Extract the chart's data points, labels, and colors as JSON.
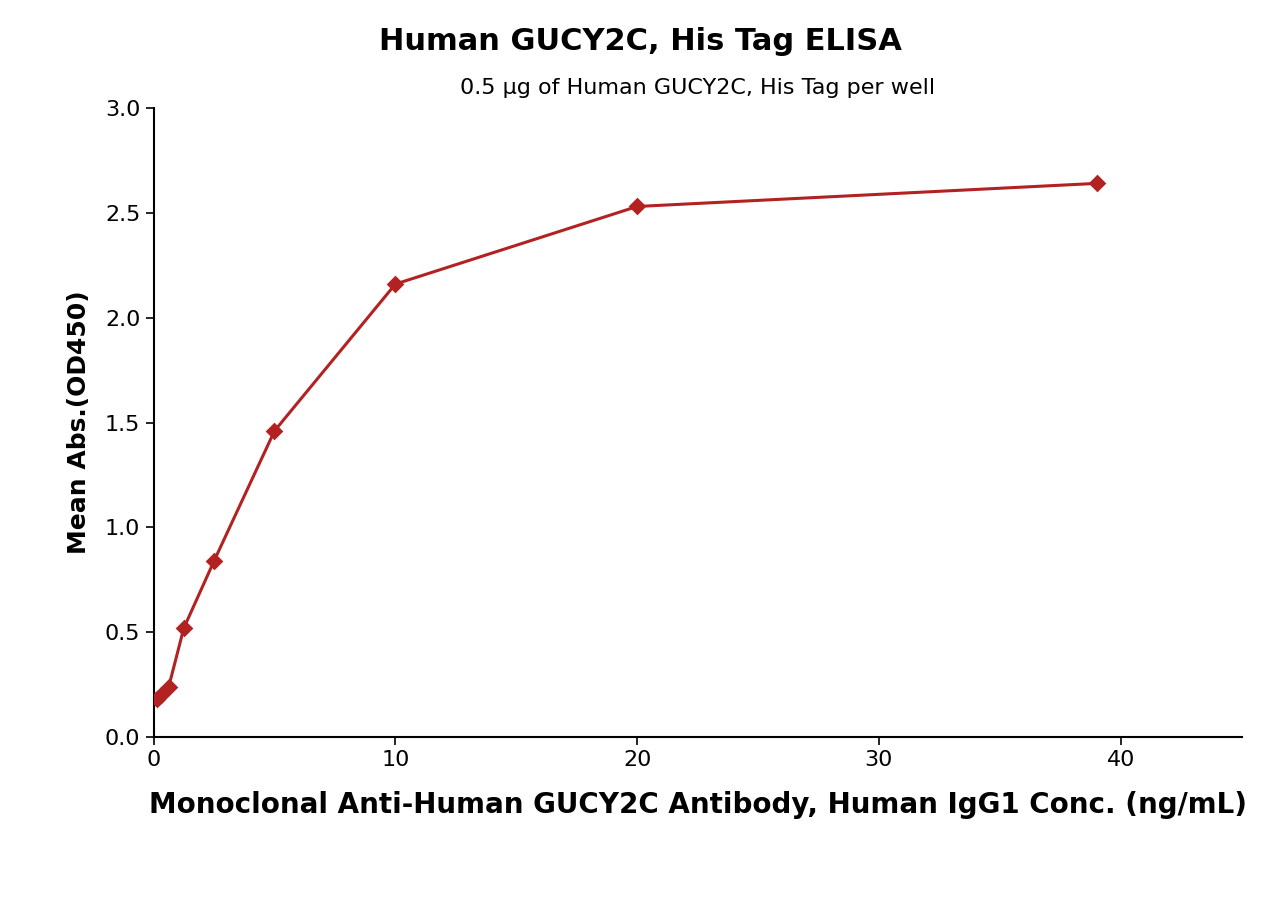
{
  "title": "Human GUCY2C, His Tag ELISA",
  "subtitle": "0.5 μg of Human GUCY2C, His Tag per well",
  "xlabel": "Monoclonal Anti-Human GUCY2C Antibody, Human IgG1 Conc. (ng/mL)",
  "ylabel": "Mean Abs.(OD450)",
  "x_data": [
    0.156,
    0.312,
    0.625,
    1.25,
    2.5,
    5.0,
    10.0,
    20.0,
    39.0
  ],
  "y_data": [
    0.18,
    0.2,
    0.24,
    0.52,
    0.84,
    1.46,
    2.16,
    2.53,
    2.64
  ],
  "xlim": [
    0,
    45
  ],
  "ylim": [
    0.0,
    3.0
  ],
  "xticks": [
    0,
    10,
    20,
    30,
    40
  ],
  "yticks": [
    0.0,
    0.5,
    1.0,
    1.5,
    2.0,
    2.5,
    3.0
  ],
  "color": "#B22222",
  "marker": "D",
  "marker_size": 9,
  "line_width": 2.2,
  "title_fontsize": 22,
  "subtitle_fontsize": 16,
  "xlabel_fontsize": 20,
  "ylabel_fontsize": 18,
  "tick_fontsize": 16,
  "background_color": "#ffffff"
}
